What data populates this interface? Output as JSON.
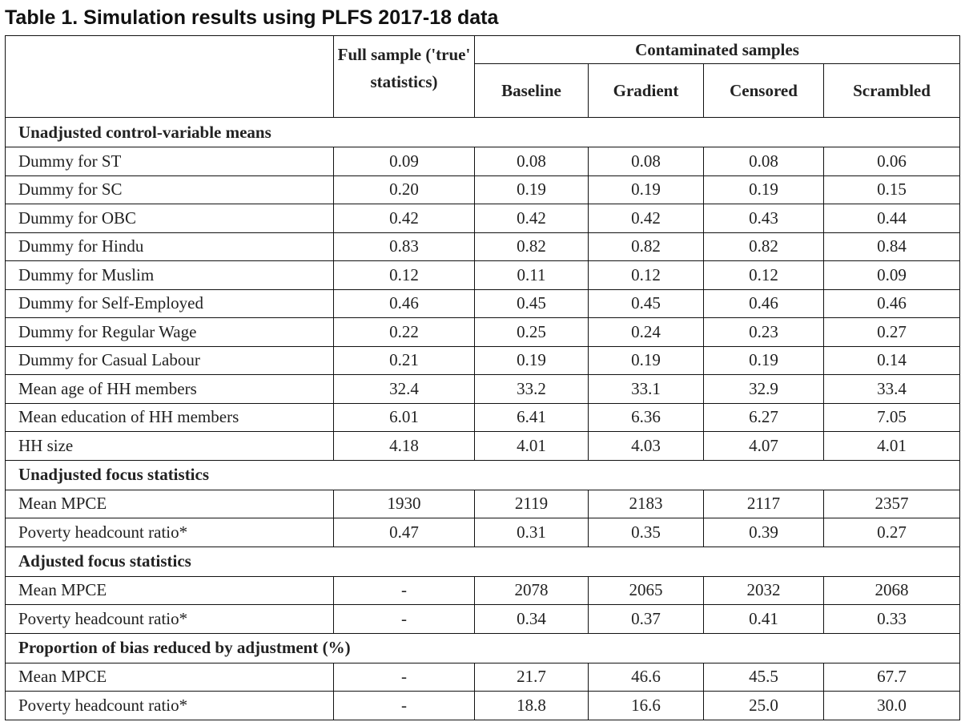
{
  "title": "Table 1. Simulation results using PLFS 2017-18 data",
  "header": {
    "full_sample": "Full sample ('true' statistics)",
    "group": "Contaminated samples",
    "columns": [
      "Baseline",
      "Gradient",
      "Censored",
      "Scrambled"
    ]
  },
  "sections": [
    {
      "title": "Unadjusted control-variable means",
      "rows": [
        {
          "label": "Dummy for ST",
          "values": [
            "0.09",
            "0.08",
            "0.08",
            "0.08",
            "0.06"
          ]
        },
        {
          "label": "Dummy for SC",
          "values": [
            "0.20",
            "0.19",
            "0.19",
            "0.19",
            "0.15"
          ]
        },
        {
          "label": "Dummy for OBC",
          "values": [
            "0.42",
            "0.42",
            "0.42",
            "0.43",
            "0.44"
          ]
        },
        {
          "label": "Dummy for Hindu",
          "values": [
            "0.83",
            "0.82",
            "0.82",
            "0.82",
            "0.84"
          ]
        },
        {
          "label": "Dummy for Muslim",
          "values": [
            "0.12",
            "0.11",
            "0.12",
            "0.12",
            "0.09"
          ]
        },
        {
          "label": "Dummy for Self-Employed",
          "values": [
            "0.46",
            "0.45",
            "0.45",
            "0.46",
            "0.46"
          ]
        },
        {
          "label": "Dummy for Regular Wage",
          "values": [
            "0.22",
            "0.25",
            "0.24",
            "0.23",
            "0.27"
          ]
        },
        {
          "label": "Dummy for Casual Labour",
          "values": [
            "0.21",
            "0.19",
            "0.19",
            "0.19",
            "0.14"
          ]
        },
        {
          "label": "Mean age of HH members",
          "values": [
            "32.4",
            "33.2",
            "33.1",
            "32.9",
            "33.4"
          ]
        },
        {
          "label": "Mean education of HH members",
          "values": [
            "6.01",
            "6.41",
            "6.36",
            "6.27",
            "7.05"
          ]
        },
        {
          "label": "HH size",
          "values": [
            "4.18",
            "4.01",
            "4.03",
            "4.07",
            "4.01"
          ]
        }
      ]
    },
    {
      "title": "Unadjusted focus statistics",
      "rows": [
        {
          "label": "Mean MPCE",
          "values": [
            "1930",
            "2119",
            "2183",
            "2117",
            "2357"
          ]
        },
        {
          "label": "Poverty headcount ratio*",
          "values": [
            "0.47",
            "0.31",
            "0.35",
            "0.39",
            "0.27"
          ]
        }
      ]
    },
    {
      "title": "Adjusted focus statistics",
      "rows": [
        {
          "label": "Mean MPCE",
          "values": [
            "-",
            "2078",
            "2065",
            "2032",
            "2068"
          ]
        },
        {
          "label": "Poverty headcount ratio*",
          "values": [
            "-",
            "0.34",
            "0.37",
            "0.41",
            "0.33"
          ]
        }
      ]
    },
    {
      "title": "Proportion of bias reduced by adjustment (%)",
      "rows": [
        {
          "label": "Mean MPCE",
          "values": [
            "-",
            "21.7",
            "46.6",
            "45.5",
            "67.7"
          ]
        },
        {
          "label": "Poverty headcount ratio*",
          "values": [
            "-",
            "18.8",
            "16.6",
            "25.0",
            "30.0"
          ]
        }
      ]
    }
  ]
}
